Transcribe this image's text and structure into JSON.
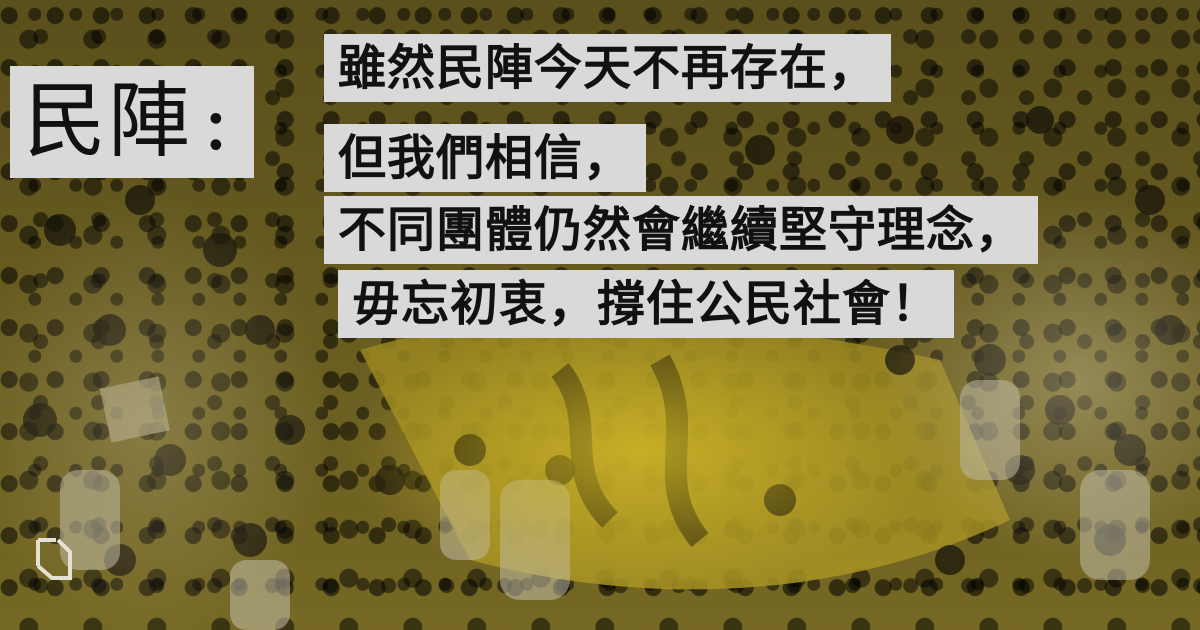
{
  "headline": {
    "speaker": "民陣",
    "colon": ":",
    "lines": [
      "雖然民陣今天不再存在，",
      "但我們相信，",
      "不同團體仍然會繼續堅守理念，",
      "毋忘初衷，撐住公民社會！"
    ]
  },
  "background": {
    "tint_color": "#d6bc28",
    "banner_color": "#c9b02a"
  },
  "icons": {
    "logo": "outlet-logo-icon"
  }
}
